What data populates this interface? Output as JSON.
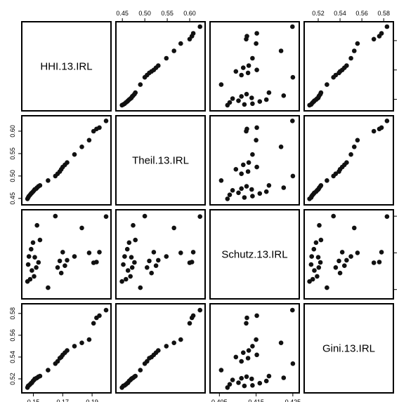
{
  "chart_data": {
    "type": "scatter",
    "variables": [
      {
        "name": "HHI.13.IRL",
        "range": [
          0.145,
          0.2
        ],
        "ticks": [
          0.15,
          0.17,
          0.19
        ],
        "tick_labels": [
          "0.15",
          "0.17",
          "0.19"
        ]
      },
      {
        "name": "Theil.13.IRL",
        "range": [
          0.445,
          0.625
        ],
        "ticks": [
          0.45,
          0.5,
          0.55,
          0.6
        ],
        "tick_labels": [
          "0.45",
          "0.50",
          "0.55",
          "0.60"
        ]
      },
      {
        "name": "Schutz.13.IRL",
        "range": [
          0.4036,
          0.4256
        ],
        "ticks": [
          0.405,
          0.415,
          0.425
        ],
        "tick_labels": [
          "0.405",
          "0.415",
          "0.425"
        ]
      },
      {
        "name": "Gini.13.IRL",
        "range": [
          0.511,
          0.585
        ],
        "ticks": [
          0.52,
          0.54,
          0.56,
          0.58
        ],
        "tick_labels": [
          "0.52",
          "0.54",
          "0.56",
          "0.58"
        ]
      }
    ],
    "observations": [
      [
        0.146,
        0.449,
        0.4072,
        0.512
      ],
      [
        0.1465,
        0.452,
        0.4118,
        0.5135
      ],
      [
        0.147,
        0.455,
        0.414,
        0.514
      ],
      [
        0.1478,
        0.458,
        0.4078,
        0.515
      ],
      [
        0.1485,
        0.461,
        0.416,
        0.516
      ],
      [
        0.149,
        0.4625,
        0.4102,
        0.5165
      ],
      [
        0.1498,
        0.465,
        0.4178,
        0.518
      ],
      [
        0.1505,
        0.468,
        0.4086,
        0.519
      ],
      [
        0.151,
        0.47,
        0.4138,
        0.52
      ],
      [
        0.152,
        0.472,
        0.411,
        0.5205
      ],
      [
        0.1525,
        0.474,
        0.4225,
        0.521
      ],
      [
        0.1535,
        0.477,
        0.4124,
        0.522
      ],
      [
        0.1545,
        0.479,
        0.4185,
        0.5225
      ],
      [
        0.16,
        0.49,
        0.4055,
        0.528
      ],
      [
        0.165,
        0.5,
        0.425,
        0.534
      ],
      [
        0.1665,
        0.505,
        0.411,
        0.536
      ],
      [
        0.168,
        0.51,
        0.4128,
        0.539
      ],
      [
        0.169,
        0.515,
        0.4095,
        0.54
      ],
      [
        0.17,
        0.52,
        0.4152,
        0.542
      ],
      [
        0.1715,
        0.525,
        0.4115,
        0.544
      ],
      [
        0.173,
        0.53,
        0.413,
        0.546
      ],
      [
        0.178,
        0.548,
        0.414,
        0.55
      ],
      [
        0.183,
        0.565,
        0.4218,
        0.553
      ],
      [
        0.188,
        0.58,
        0.415,
        0.556
      ],
      [
        0.191,
        0.6,
        0.4123,
        0.571
      ],
      [
        0.193,
        0.605,
        0.4125,
        0.576
      ],
      [
        0.195,
        0.608,
        0.4152,
        0.578
      ],
      [
        0.1995,
        0.623,
        0.4249,
        0.583
      ]
    ],
    "title": "",
    "xlabel": "",
    "ylabel": "",
    "grid": false,
    "legend": "none"
  }
}
